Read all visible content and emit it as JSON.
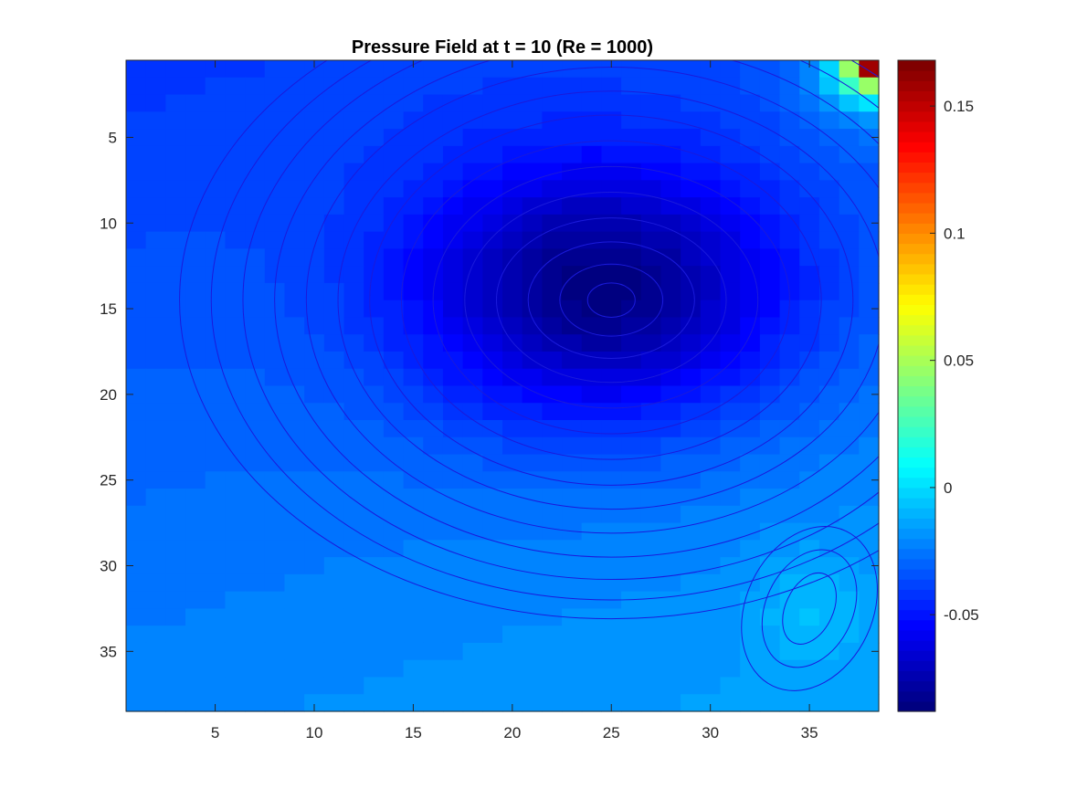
{
  "chart_data": {
    "type": "heatmap",
    "title": "Pressure Field at t = 10 (Re = 1000)",
    "xlabel": "",
    "ylabel": "",
    "xlim": [
      0.5,
      38.5
    ],
    "ylim": [
      0.5,
      38.5
    ],
    "y_reversed": true,
    "x_ticks": [
      5,
      10,
      15,
      20,
      25,
      30,
      35
    ],
    "y_ticks": [
      5,
      10,
      15,
      20,
      25,
      30,
      35
    ],
    "x_tick_labels": [
      "5",
      "10",
      "15",
      "20",
      "25",
      "30",
      "35"
    ],
    "y_tick_labels": [
      "5",
      "10",
      "15",
      "20",
      "25",
      "30",
      "35"
    ],
    "colorbar": {
      "colormap": "jet",
      "clim": [
        -0.088,
        0.168
      ],
      "ticks": [
        0.15,
        0.1,
        0.05,
        0,
        -0.05
      ],
      "tick_labels": [
        "0.15",
        "0.1",
        "0.05",
        "0",
        "-0.05"
      ]
    },
    "field": {
      "description_values": "cell-centered pressure, 38 x 38 grid",
      "grid_size": 38,
      "background_pressure": -0.028,
      "primary_vortex_center": [
        24.5,
        14
      ],
      "primary_vortex_min": -0.085,
      "corner_peak": 0.165,
      "corner_peak_cell": [
        38,
        1
      ],
      "secondary_vortex_center": [
        35,
        32.5
      ],
      "secondary_vortex_pressure": -0.018
    },
    "overlay": {
      "type": "streamlines",
      "color": "#1a1adb"
    }
  }
}
